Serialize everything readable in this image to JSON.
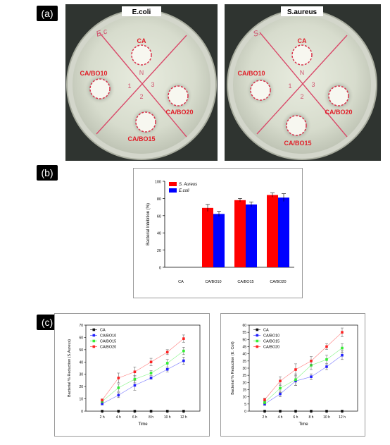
{
  "panel_labels": {
    "a": "(a)",
    "b": "(b)",
    "c": "(c)"
  },
  "petri": [
    {
      "title": "E.coli",
      "handwriting": "E.c",
      "mark_n": "N",
      "mark_1": "1",
      "mark_2": "2",
      "mark_3": "3",
      "samples": {
        "top": "CA",
        "left": "CA/BO10",
        "right": "CA/BO20",
        "bottom": "CA/BO15"
      }
    },
    {
      "title": "S.aureus",
      "handwriting": "S.",
      "mark_n": "N",
      "mark_1": "1",
      "mark_2": "2",
      "mark_3": "3",
      "samples": {
        "top": "CA",
        "left": "CA/BO10",
        "right": "CA/BO20",
        "bottom": "CA/BO15"
      }
    }
  ],
  "colors": {
    "red": "#ff1a1a",
    "blue": "#1a1aff",
    "green": "#33ee33",
    "black": "#111111",
    "label_red": "#e0202a"
  },
  "chart_data": [
    {
      "type": "bar",
      "ylabel": "Bacterial Inhibition (%)",
      "xlabel": "",
      "ylim": [
        0,
        100
      ],
      "yticks": [
        0,
        20,
        40,
        60,
        80,
        100
      ],
      "categories": [
        "CA",
        "CA/BO10",
        "CA/BO15",
        "CA/BO20"
      ],
      "legend": "top-left",
      "series": [
        {
          "name": "S. Aureus",
          "color": "#ff0000",
          "values": [
            0,
            69,
            78,
            84
          ],
          "errors": [
            0,
            4,
            2,
            2.5
          ]
        },
        {
          "name": "E.coli",
          "color": "#0000ff",
          "values": [
            0,
            62,
            73,
            81
          ],
          "errors": [
            0,
            3,
            3,
            4.5
          ]
        }
      ]
    },
    {
      "type": "line",
      "xlabel": "Time",
      "ylabel": "Bacterial % Reduction (S.Aureus)",
      "ylim": [
        0,
        70
      ],
      "yticks": [
        0,
        10,
        20,
        30,
        40,
        50,
        60,
        70
      ],
      "x": [
        "2 h",
        "4 h",
        "6 h",
        "8 h",
        "10 h",
        "12 h"
      ],
      "legend": "top-left",
      "series": [
        {
          "name": "CA",
          "color": "#111111",
          "values": [
            0,
            0,
            0,
            0,
            0,
            0
          ],
          "errors": [
            0,
            0,
            0,
            0,
            0,
            0
          ]
        },
        {
          "name": "CA/BO10",
          "color": "#2222ff",
          "values": [
            6,
            13,
            21,
            27,
            34,
            41
          ],
          "errors": [
            1,
            2,
            4,
            1,
            2,
            3
          ]
        },
        {
          "name": "CA/BO15",
          "color": "#33ee33",
          "values": [
            8,
            19,
            26,
            31,
            39,
            49
          ],
          "errors": [
            1.5,
            3,
            3,
            2,
            3,
            3
          ]
        },
        {
          "name": "CA/BO20",
          "color": "#ff2222",
          "values": [
            9,
            27,
            32,
            40,
            48,
            59
          ],
          "errors": [
            1,
            4,
            4,
            3,
            2,
            3
          ]
        }
      ]
    },
    {
      "type": "line",
      "xlabel": "Time",
      "ylabel": "Bacterial % Reduction (E. Coli)",
      "ylim": [
        0,
        60
      ],
      "yticks": [
        0,
        5,
        10,
        15,
        20,
        25,
        30,
        35,
        40,
        45,
        50,
        55,
        60
      ],
      "x": [
        "2 h",
        "4 h",
        "6 h",
        "8 h",
        "10 h",
        "12 h"
      ],
      "legend": "top-left",
      "series": [
        {
          "name": "CA",
          "color": "#111111",
          "values": [
            0,
            0,
            0,
            0,
            0,
            0
          ],
          "errors": [
            0,
            0,
            0,
            0,
            0,
            0
          ]
        },
        {
          "name": "CA/BO10",
          "color": "#2222ff",
          "values": [
            5,
            12,
            21,
            24,
            31,
            39
          ],
          "errors": [
            1,
            2,
            3,
            2,
            2,
            3
          ]
        },
        {
          "name": "CA/BO15",
          "color": "#33ee33",
          "values": [
            6,
            16,
            22,
            32,
            36,
            44
          ],
          "errors": [
            1,
            3,
            4,
            3,
            3,
            3
          ]
        },
        {
          "name": "CA/BO20",
          "color": "#ff2222",
          "values": [
            8,
            21,
            29,
            35,
            45,
            55
          ],
          "errors": [
            1,
            3,
            4,
            3,
            2,
            3
          ]
        }
      ]
    }
  ]
}
